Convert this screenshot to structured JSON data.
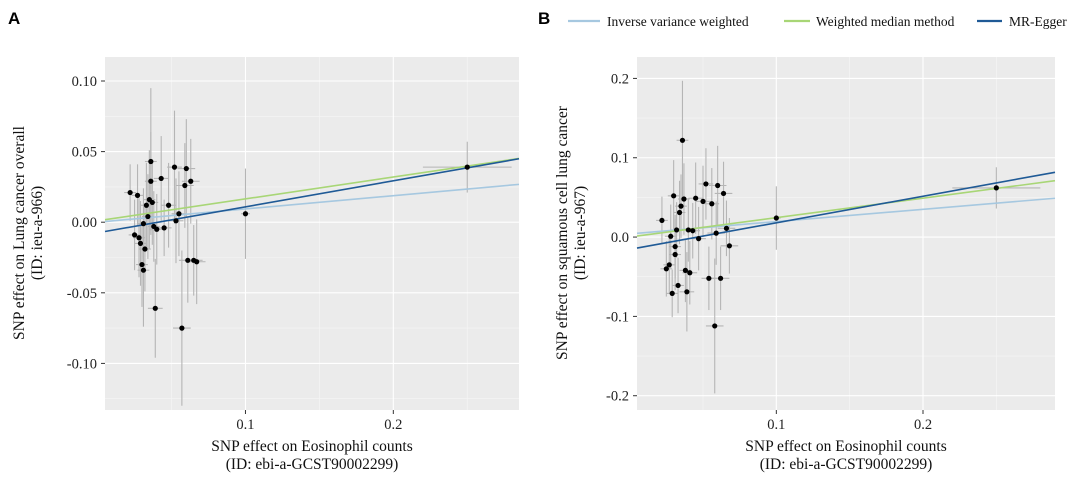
{
  "legend": {
    "items": [
      {
        "label": "Inverse variance weighted",
        "color": "#a6c8e0"
      },
      {
        "label": "Weighted median method",
        "color": "#a8d676"
      },
      {
        "label": "MR-Egger",
        "color": "#1f5a96"
      }
    ]
  },
  "chart_data": [
    {
      "panel": "A",
      "type": "scatter",
      "xlabel": "SNP effect on Eosinophil counts",
      "xlabel2": "(ID: ebi-a-GCST90002299)",
      "ylabel": "SNP effect on Lung cancer overall",
      "ylabel2": "(ID: ieu-a-966)",
      "xlim": [
        0.005,
        0.285
      ],
      "ylim": [
        -0.133,
        0.117
      ],
      "xticks": [
        0.1,
        0.2
      ],
      "xtick_labels": [
        "0.1",
        "0.2"
      ],
      "yticks": [
        0.1,
        0.05,
        0.0,
        -0.05,
        -0.1
      ],
      "ytick_labels": [
        "0.10",
        "0.05",
        "0.00",
        "-0.05",
        "-0.10"
      ],
      "points": [
        {
          "x": 0.022,
          "y": 0.021,
          "xerr": 0.004,
          "yerr": 0.02
        },
        {
          "x": 0.027,
          "y": 0.019,
          "xerr": 0.004,
          "yerr": 0.022
        },
        {
          "x": 0.025,
          "y": -0.009,
          "xerr": 0.004,
          "yerr": 0.025
        },
        {
          "x": 0.028,
          "y": -0.011,
          "xerr": 0.004,
          "yerr": 0.028
        },
        {
          "x": 0.029,
          "y": -0.015,
          "xerr": 0.004,
          "yerr": 0.03
        },
        {
          "x": 0.03,
          "y": -0.03,
          "xerr": 0.004,
          "yerr": 0.03
        },
        {
          "x": 0.031,
          "y": -0.034,
          "xerr": 0.004,
          "yerr": 0.04
        },
        {
          "x": 0.031,
          "y": -0.001,
          "xerr": 0.004,
          "yerr": 0.025
        },
        {
          "x": 0.032,
          "y": -0.019,
          "xerr": 0.004,
          "yerr": 0.03
        },
        {
          "x": 0.033,
          "y": 0.012,
          "xerr": 0.004,
          "yerr": 0.03
        },
        {
          "x": 0.034,
          "y": 0.004,
          "xerr": 0.004,
          "yerr": 0.03
        },
        {
          "x": 0.035,
          "y": 0.016,
          "xerr": 0.004,
          "yerr": 0.035
        },
        {
          "x": 0.036,
          "y": 0.043,
          "xerr": 0.004,
          "yerr": 0.052
        },
        {
          "x": 0.036,
          "y": 0.029,
          "xerr": 0.004,
          "yerr": 0.035
        },
        {
          "x": 0.037,
          "y": 0.014,
          "xerr": 0.004,
          "yerr": 0.03
        },
        {
          "x": 0.038,
          "y": -0.003,
          "xerr": 0.004,
          "yerr": 0.025
        },
        {
          "x": 0.039,
          "y": -0.061,
          "xerr": 0.005,
          "yerr": 0.035
        },
        {
          "x": 0.04,
          "y": -0.005,
          "xerr": 0.005,
          "yerr": 0.025
        },
        {
          "x": 0.043,
          "y": 0.031,
          "xerr": 0.005,
          "yerr": 0.03
        },
        {
          "x": 0.045,
          "y": -0.004,
          "xerr": 0.005,
          "yerr": 0.02
        },
        {
          "x": 0.048,
          "y": 0.012,
          "xerr": 0.005,
          "yerr": 0.03
        },
        {
          "x": 0.052,
          "y": 0.039,
          "xerr": 0.005,
          "yerr": 0.04
        },
        {
          "x": 0.053,
          "y": 0.001,
          "xerr": 0.005,
          "yerr": 0.03
        },
        {
          "x": 0.055,
          "y": 0.006,
          "xerr": 0.005,
          "yerr": 0.03
        },
        {
          "x": 0.057,
          "y": -0.075,
          "xerr": 0.006,
          "yerr": 0.055
        },
        {
          "x": 0.059,
          "y": 0.026,
          "xerr": 0.006,
          "yerr": 0.03
        },
        {
          "x": 0.06,
          "y": 0.038,
          "xerr": 0.006,
          "yerr": 0.035
        },
        {
          "x": 0.061,
          "y": -0.027,
          "xerr": 0.006,
          "yerr": 0.03
        },
        {
          "x": 0.063,
          "y": 0.029,
          "xerr": 0.006,
          "yerr": 0.03
        },
        {
          "x": 0.065,
          "y": -0.027,
          "xerr": 0.006,
          "yerr": 0.025
        },
        {
          "x": 0.067,
          "y": -0.028,
          "xerr": 0.006,
          "yerr": 0.03
        },
        {
          "x": 0.1,
          "y": 0.006,
          "xerr": 0.003,
          "yerr": 0.032
        },
        {
          "x": 0.25,
          "y": 0.039,
          "xerr": 0.03,
          "yerr": 0.018
        }
      ],
      "lines": [
        {
          "name": "Inverse variance weighted",
          "color": "#a6c8e0",
          "intercept": 0.0,
          "slope": 0.094
        },
        {
          "name": "Weighted median method",
          "color": "#a8d676",
          "intercept": 0.001,
          "slope": 0.155
        },
        {
          "name": "MR-Egger",
          "color": "#1f5a96",
          "intercept": -0.0075,
          "slope": 0.184
        }
      ]
    },
    {
      "panel": "B",
      "type": "scatter",
      "xlabel": "SNP effect on Eosinophil counts",
      "xlabel2": "(ID: ebi-a-GCST90002299)",
      "ylabel": "SNP effect on squamous cell lung cancer",
      "ylabel2": "(ID: ieu-a-967)",
      "xlim": [
        0.005,
        0.29
      ],
      "ylim": [
        -0.218,
        0.227
      ],
      "xticks": [
        0.1,
        0.2
      ],
      "xtick_labels": [
        "0.1",
        "0.2"
      ],
      "yticks": [
        0.2,
        0.1,
        0.0,
        -0.1,
        -0.2
      ],
      "ytick_labels": [
        "0.2",
        "0.1",
        "0.0",
        "-0.1",
        "-0.2"
      ],
      "points": [
        {
          "x": 0.022,
          "y": 0.021,
          "xerr": 0.004,
          "yerr": 0.03
        },
        {
          "x": 0.025,
          "y": -0.04,
          "xerr": 0.004,
          "yerr": 0.035
        },
        {
          "x": 0.027,
          "y": -0.035,
          "xerr": 0.004,
          "yerr": 0.035
        },
        {
          "x": 0.028,
          "y": 0.001,
          "xerr": 0.004,
          "yerr": 0.04
        },
        {
          "x": 0.029,
          "y": -0.071,
          "xerr": 0.004,
          "yerr": 0.03
        },
        {
          "x": 0.03,
          "y": 0.052,
          "xerr": 0.004,
          "yerr": 0.045
        },
        {
          "x": 0.031,
          "y": -0.022,
          "xerr": 0.004,
          "yerr": 0.045
        },
        {
          "x": 0.031,
          "y": -0.012,
          "xerr": 0.004,
          "yerr": 0.04
        },
        {
          "x": 0.032,
          "y": 0.009,
          "xerr": 0.004,
          "yerr": 0.035
        },
        {
          "x": 0.033,
          "y": -0.061,
          "xerr": 0.004,
          "yerr": 0.035
        },
        {
          "x": 0.034,
          "y": 0.031,
          "xerr": 0.004,
          "yerr": 0.04
        },
        {
          "x": 0.035,
          "y": 0.039,
          "xerr": 0.004,
          "yerr": 0.04
        },
        {
          "x": 0.036,
          "y": 0.122,
          "xerr": 0.004,
          "yerr": 0.075
        },
        {
          "x": 0.037,
          "y": 0.048,
          "xerr": 0.004,
          "yerr": 0.045
        },
        {
          "x": 0.038,
          "y": -0.042,
          "xerr": 0.004,
          "yerr": 0.04
        },
        {
          "x": 0.039,
          "y": -0.069,
          "xerr": 0.005,
          "yerr": 0.05
        },
        {
          "x": 0.04,
          "y": 0.009,
          "xerr": 0.005,
          "yerr": 0.04
        },
        {
          "x": 0.041,
          "y": -0.045,
          "xerr": 0.005,
          "yerr": 0.04
        },
        {
          "x": 0.043,
          "y": 0.008,
          "xerr": 0.005,
          "yerr": 0.035
        },
        {
          "x": 0.045,
          "y": 0.049,
          "xerr": 0.005,
          "yerr": 0.045
        },
        {
          "x": 0.047,
          "y": -0.002,
          "xerr": 0.005,
          "yerr": 0.04
        },
        {
          "x": 0.05,
          "y": 0.045,
          "xerr": 0.005,
          "yerr": 0.045
        },
        {
          "x": 0.052,
          "y": 0.067,
          "xerr": 0.005,
          "yerr": 0.045
        },
        {
          "x": 0.054,
          "y": -0.052,
          "xerr": 0.005,
          "yerr": 0.04
        },
        {
          "x": 0.056,
          "y": 0.042,
          "xerr": 0.005,
          "yerr": 0.045
        },
        {
          "x": 0.058,
          "y": -0.112,
          "xerr": 0.006,
          "yerr": 0.085
        },
        {
          "x": 0.059,
          "y": 0.005,
          "xerr": 0.006,
          "yerr": 0.04
        },
        {
          "x": 0.06,
          "y": 0.065,
          "xerr": 0.006,
          "yerr": 0.05
        },
        {
          "x": 0.062,
          "y": -0.052,
          "xerr": 0.006,
          "yerr": 0.04
        },
        {
          "x": 0.064,
          "y": 0.055,
          "xerr": 0.006,
          "yerr": 0.04
        },
        {
          "x": 0.066,
          "y": 0.011,
          "xerr": 0.006,
          "yerr": 0.035
        },
        {
          "x": 0.068,
          "y": -0.011,
          "xerr": 0.006,
          "yerr": 0.035
        },
        {
          "x": 0.1,
          "y": 0.024,
          "xerr": 0.003,
          "yerr": 0.04
        },
        {
          "x": 0.25,
          "y": 0.062,
          "xerr": 0.03,
          "yerr": 0.026
        }
      ],
      "lines": [
        {
          "name": "Inverse variance weighted",
          "color": "#a6c8e0",
          "intercept": 0.004,
          "slope": 0.155
        },
        {
          "name": "Weighted median method",
          "color": "#a8d676",
          "intercept": 0.0,
          "slope": 0.245
        },
        {
          "name": "MR-Egger",
          "color": "#1f5a96",
          "intercept": -0.0155,
          "slope": 0.335
        }
      ]
    }
  ]
}
